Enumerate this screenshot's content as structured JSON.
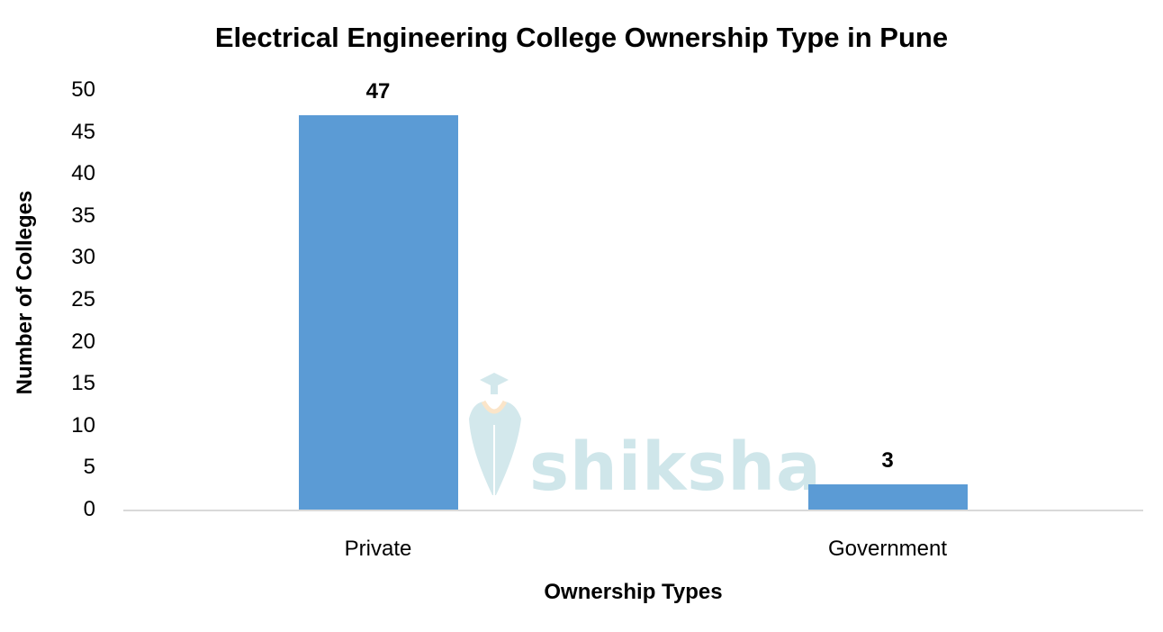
{
  "chart_data": {
    "type": "bar",
    "title": "Electrical Engineering College Ownership Type in Pune",
    "xlabel": "Ownership Types",
    "ylabel": "Number of Colleges",
    "categories": [
      "Private",
      "Government"
    ],
    "values": [
      47,
      3
    ],
    "data_labels": [
      "47",
      "3"
    ],
    "ylim": [
      0,
      50
    ],
    "yticks": [
      "0",
      "5",
      "10",
      "15",
      "20",
      "25",
      "30",
      "35",
      "40",
      "45",
      "50"
    ],
    "grid": false,
    "legend": null,
    "bar_color": "#5B9BD5"
  },
  "watermark": {
    "text": "shiksha"
  }
}
